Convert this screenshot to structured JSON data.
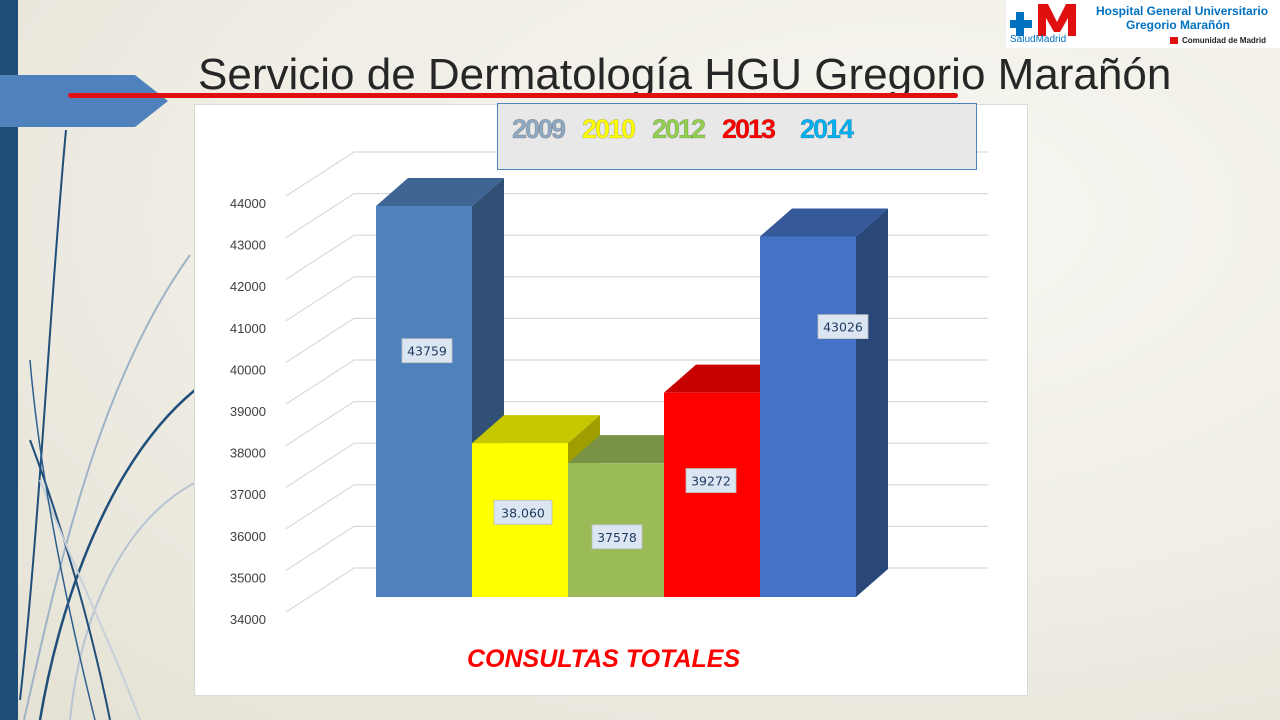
{
  "slide": {
    "title": "Servicio de Dermatología HGU Gregorio Marañón"
  },
  "logo": {
    "brand": "SaludMadrid",
    "line1": "Hospital General Universitario",
    "line2": "Gregorio Marañón",
    "region": "Comunidad de Madrid"
  },
  "colors": {
    "title_underline": "#e01010",
    "left_bar": "#1f4e79",
    "accent_tab": "#4f81bd"
  },
  "chart_data": {
    "type": "bar",
    "style": "3d-clustered",
    "categories": [
      "2009",
      "2010",
      "2012",
      "2013",
      "2014"
    ],
    "values": [
      43759,
      38060,
      37578,
      39272,
      43026
    ],
    "data_labels": [
      "43759",
      "38.060",
      "37578",
      "39272",
      "43026"
    ],
    "colors": [
      "#4f81bd",
      "#ffff00",
      "#9bbb59",
      "#ff0000",
      "#4472c4"
    ],
    "legend_colors": [
      "#8ea9c1",
      "#ffff00",
      "#92d050",
      "#ff0000",
      "#00b0f0"
    ],
    "ylim": [
      34000,
      44000
    ],
    "yticks": [
      "34000",
      "35000",
      "36000",
      "37000",
      "38000",
      "39000",
      "40000",
      "41000",
      "42000",
      "43000",
      "44000"
    ],
    "xlabel": "CONSULTAS TOTALES",
    "ylabel": "",
    "grid": true,
    "legend_position": "top"
  }
}
